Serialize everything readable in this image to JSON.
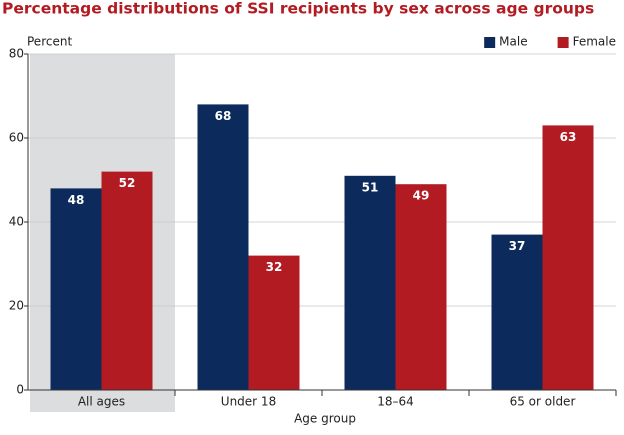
{
  "chart_data": {
    "type": "bar",
    "title": "Percentage distributions of SSI recipients by sex across age groups",
    "y_label": "Percent",
    "x_label": "Age group",
    "categories": [
      "All ages",
      "Under 18",
      "18–64",
      "65 or older"
    ],
    "series": [
      {
        "name": "Male",
        "color": "#0c2a5b",
        "values": [
          48,
          68,
          51,
          37
        ]
      },
      {
        "name": "Female",
        "color": "#b31b23",
        "values": [
          52,
          32,
          49,
          63
        ]
      }
    ],
    "ylim": [
      0,
      80
    ],
    "yticks": [
      0,
      20,
      40,
      60,
      80
    ],
    "grid": true,
    "legend": "top-right"
  }
}
